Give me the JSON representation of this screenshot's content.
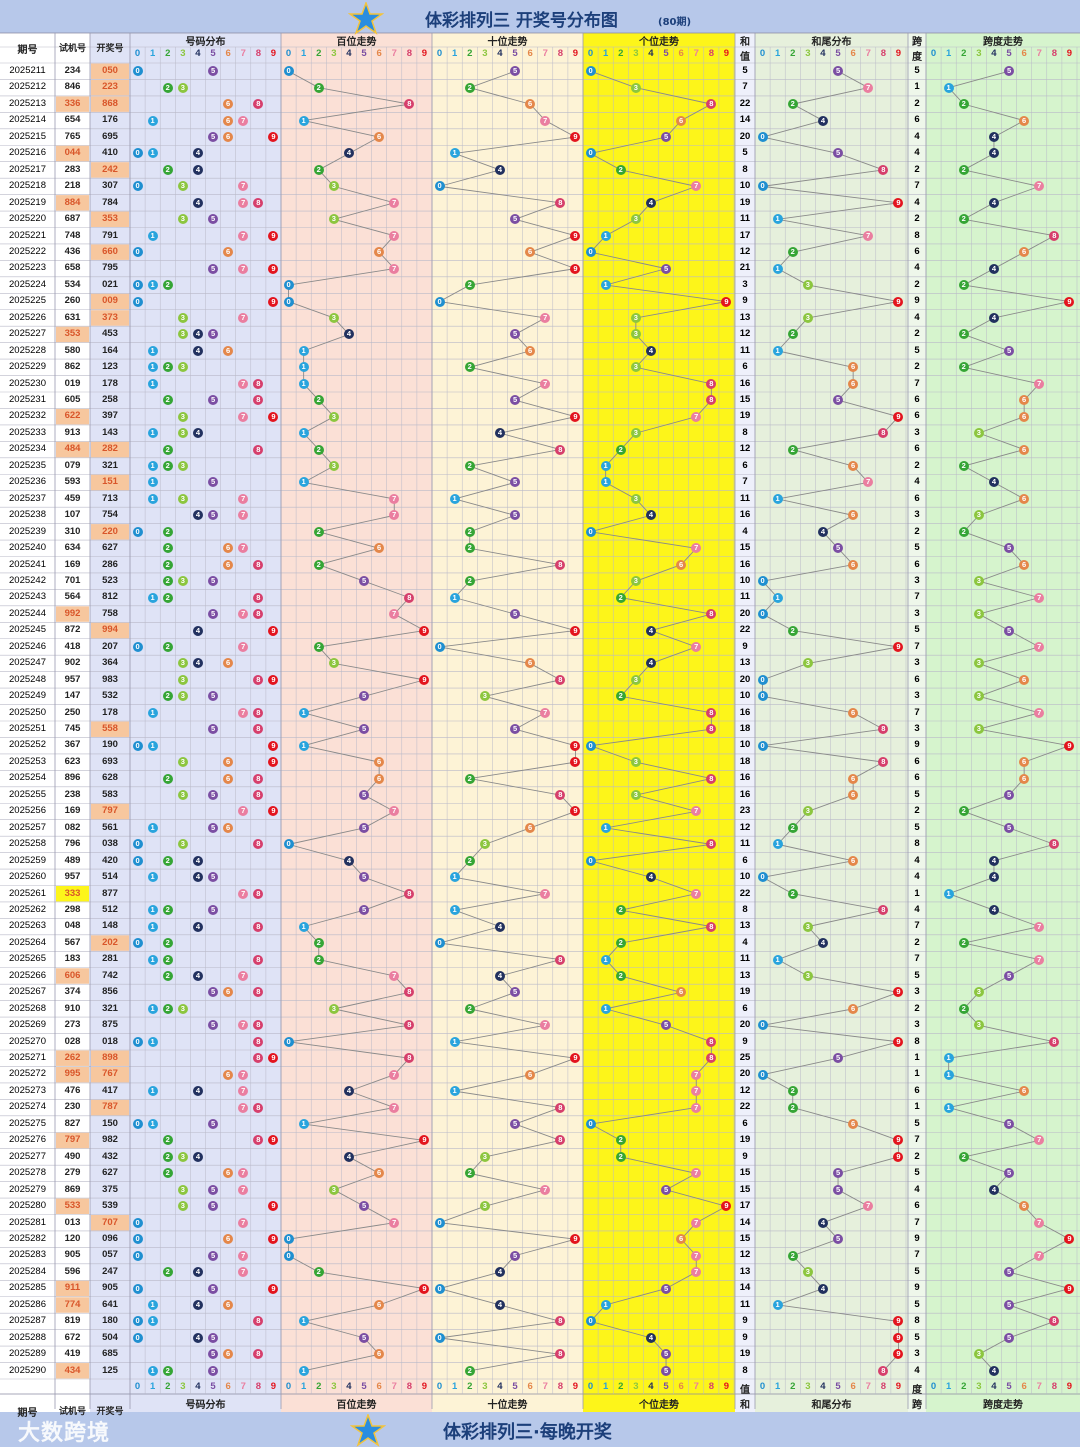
{
  "header": {
    "title": "体彩排列三 开奖号分布图",
    "period_count": "(80期)"
  },
  "footer": {
    "caption": "体彩排列三·每晚开奖",
    "brand": "大数跨境"
  },
  "columns": {
    "period": "期号",
    "trial": "试机号",
    "draw": "开奖号",
    "distribution": "号码分布",
    "hundreds": "百位走势",
    "tens": "十位走势",
    "units": "个位走势",
    "sum_top": "和",
    "sum_bottom": "值",
    "sum_tail": "和尾分布",
    "span_top": "跨",
    "span_bottom": "度",
    "span_trend": "跨度走势"
  },
  "digits": [
    "0",
    "1",
    "2",
    "3",
    "4",
    "5",
    "6",
    "7",
    "8",
    "9"
  ],
  "colors": {
    "title_bar": "#b7c8ea",
    "distribution_bg": "#dfe3f6",
    "hundreds_bg": "#fbe0d6",
    "tens_bg": "#fdf3d6",
    "units_bg": "#fdf51a",
    "sum_bg": "#eef0fb",
    "sum_tail_bg": "#e6f0dc",
    "span_col_bg": "#eef7ea",
    "span_trend_bg": "#d6f4cd",
    "trial_highlight": "#f7c79e",
    "triple_highlight": "#fdf51a",
    "digit_colors": [
      "#1f8fd0",
      "#29a4dd",
      "#35a535",
      "#8cc63f",
      "#22315f",
      "#7b4ea3",
      "#e4874a",
      "#ea7ea0",
      "#d63f6c",
      "#e3141e"
    ]
  },
  "chart_data": {
    "type": "table",
    "title": "体彩排列三 开奖号分布图",
    "rows": [
      {
        "period": "2025211",
        "trial": "234",
        "draw": "050",
        "sum": 5,
        "span": 5,
        "hl": "draw"
      },
      {
        "period": "2025212",
        "trial": "846",
        "draw": "223",
        "sum": 7,
        "span": 1,
        "hl": "draw"
      },
      {
        "period": "2025213",
        "trial": "336",
        "draw": "868",
        "sum": 22,
        "span": 2,
        "hl": "both"
      },
      {
        "period": "2025214",
        "trial": "654",
        "draw": "176",
        "sum": 14,
        "span": 6,
        "hl": ""
      },
      {
        "period": "2025215",
        "trial": "765",
        "draw": "695",
        "sum": 20,
        "span": 4,
        "hl": ""
      },
      {
        "period": "2025216",
        "trial": "044",
        "draw": "410",
        "sum": 5,
        "span": 4,
        "hl": "trial"
      },
      {
        "period": "2025217",
        "trial": "283",
        "draw": "242",
        "sum": 8,
        "span": 2,
        "hl": "draw"
      },
      {
        "period": "2025218",
        "trial": "218",
        "draw": "307",
        "sum": 10,
        "span": 7,
        "hl": ""
      },
      {
        "period": "2025219",
        "trial": "884",
        "draw": "784",
        "sum": 19,
        "span": 4,
        "hl": "trial"
      },
      {
        "period": "2025220",
        "trial": "687",
        "draw": "353",
        "sum": 11,
        "span": 2,
        "hl": "draw"
      },
      {
        "period": "2025221",
        "trial": "748",
        "draw": "791",
        "sum": 17,
        "span": 8,
        "hl": ""
      },
      {
        "period": "2025222",
        "trial": "436",
        "draw": "660",
        "sum": 12,
        "span": 6,
        "hl": "draw"
      },
      {
        "period": "2025223",
        "trial": "658",
        "draw": "795",
        "sum": 21,
        "span": 4,
        "hl": ""
      },
      {
        "period": "2025224",
        "trial": "534",
        "draw": "021",
        "sum": 3,
        "span": 2,
        "hl": ""
      },
      {
        "period": "2025225",
        "trial": "260",
        "draw": "009",
        "sum": 9,
        "span": 9,
        "hl": "draw"
      },
      {
        "period": "2025226",
        "trial": "631",
        "draw": "373",
        "sum": 13,
        "span": 4,
        "hl": "draw"
      },
      {
        "period": "2025227",
        "trial": "353",
        "draw": "453",
        "sum": 12,
        "span": 2,
        "hl": "trial"
      },
      {
        "period": "2025228",
        "trial": "580",
        "draw": "164",
        "sum": 11,
        "span": 5,
        "hl": ""
      },
      {
        "period": "2025229",
        "trial": "862",
        "draw": "123",
        "sum": 6,
        "span": 2,
        "hl": ""
      },
      {
        "period": "2025230",
        "trial": "019",
        "draw": "178",
        "sum": 16,
        "span": 7,
        "hl": ""
      },
      {
        "period": "2025231",
        "trial": "605",
        "draw": "258",
        "sum": 15,
        "span": 6,
        "hl": ""
      },
      {
        "period": "2025232",
        "trial": "622",
        "draw": "397",
        "sum": 19,
        "span": 6,
        "hl": "trial"
      },
      {
        "period": "2025233",
        "trial": "913",
        "draw": "143",
        "sum": 8,
        "span": 3,
        "hl": ""
      },
      {
        "period": "2025234",
        "trial": "484",
        "draw": "282",
        "sum": 12,
        "span": 6,
        "hl": "both"
      },
      {
        "period": "2025235",
        "trial": "079",
        "draw": "321",
        "sum": 6,
        "span": 2,
        "hl": ""
      },
      {
        "period": "2025236",
        "trial": "593",
        "draw": "151",
        "sum": 7,
        "span": 4,
        "hl": "draw"
      },
      {
        "period": "2025237",
        "trial": "459",
        "draw": "713",
        "sum": 11,
        "span": 6,
        "hl": ""
      },
      {
        "period": "2025238",
        "trial": "107",
        "draw": "754",
        "sum": 16,
        "span": 3,
        "hl": ""
      },
      {
        "period": "2025239",
        "trial": "310",
        "draw": "220",
        "sum": 4,
        "span": 2,
        "hl": "draw"
      },
      {
        "period": "2025240",
        "trial": "634",
        "draw": "627",
        "sum": 15,
        "span": 5,
        "hl": ""
      },
      {
        "period": "2025241",
        "trial": "169",
        "draw": "286",
        "sum": 16,
        "span": 6,
        "hl": ""
      },
      {
        "period": "2025242",
        "trial": "701",
        "draw": "523",
        "sum": 10,
        "span": 3,
        "hl": ""
      },
      {
        "period": "2025243",
        "trial": "564",
        "draw": "812",
        "sum": 11,
        "span": 7,
        "hl": ""
      },
      {
        "period": "2025244",
        "trial": "992",
        "draw": "758",
        "sum": 20,
        "span": 3,
        "hl": "trial"
      },
      {
        "period": "2025245",
        "trial": "872",
        "draw": "994",
        "sum": 22,
        "span": 5,
        "hl": "draw"
      },
      {
        "period": "2025246",
        "trial": "418",
        "draw": "207",
        "sum": 9,
        "span": 7,
        "hl": ""
      },
      {
        "period": "2025247",
        "trial": "902",
        "draw": "364",
        "sum": 13,
        "span": 3,
        "hl": ""
      },
      {
        "period": "2025248",
        "trial": "957",
        "draw": "983",
        "sum": 20,
        "span": 6,
        "hl": ""
      },
      {
        "period": "2025249",
        "trial": "147",
        "draw": "532",
        "sum": 10,
        "span": 3,
        "hl": ""
      },
      {
        "period": "2025250",
        "trial": "250",
        "draw": "178",
        "sum": 16,
        "span": 7,
        "hl": ""
      },
      {
        "period": "2025251",
        "trial": "745",
        "draw": "558",
        "sum": 18,
        "span": 3,
        "hl": "draw"
      },
      {
        "period": "2025252",
        "trial": "367",
        "draw": "190",
        "sum": 10,
        "span": 9,
        "hl": ""
      },
      {
        "period": "2025253",
        "trial": "623",
        "draw": "693",
        "sum": 18,
        "span": 6,
        "hl": ""
      },
      {
        "period": "2025254",
        "trial": "896",
        "draw": "628",
        "sum": 16,
        "span": 6,
        "hl": ""
      },
      {
        "period": "2025255",
        "trial": "238",
        "draw": "583",
        "sum": 16,
        "span": 5,
        "hl": ""
      },
      {
        "period": "2025256",
        "trial": "169",
        "draw": "797",
        "sum": 23,
        "span": 2,
        "hl": "draw"
      },
      {
        "period": "2025257",
        "trial": "082",
        "draw": "561",
        "sum": 12,
        "span": 5,
        "hl": ""
      },
      {
        "period": "2025258",
        "trial": "796",
        "draw": "038",
        "sum": 11,
        "span": 8,
        "hl": ""
      },
      {
        "period": "2025259",
        "trial": "489",
        "draw": "420",
        "sum": 6,
        "span": 4,
        "hl": ""
      },
      {
        "period": "2025260",
        "trial": "957",
        "draw": "514",
        "sum": 10,
        "span": 4,
        "hl": ""
      },
      {
        "period": "2025261",
        "trial": "333",
        "draw": "877",
        "sum": 22,
        "span": 1,
        "hl": "triple"
      },
      {
        "period": "2025262",
        "trial": "298",
        "draw": "512",
        "sum": 8,
        "span": 4,
        "hl": ""
      },
      {
        "period": "2025263",
        "trial": "048",
        "draw": "148",
        "sum": 13,
        "span": 7,
        "hl": ""
      },
      {
        "period": "2025264",
        "trial": "567",
        "draw": "202",
        "sum": 4,
        "span": 2,
        "hl": "draw"
      },
      {
        "period": "2025265",
        "trial": "183",
        "draw": "281",
        "sum": 11,
        "span": 7,
        "hl": ""
      },
      {
        "period": "2025266",
        "trial": "606",
        "draw": "742",
        "sum": 13,
        "span": 5,
        "hl": "trial"
      },
      {
        "period": "2025267",
        "trial": "374",
        "draw": "856",
        "sum": 19,
        "span": 3,
        "hl": ""
      },
      {
        "period": "2025268",
        "trial": "910",
        "draw": "321",
        "sum": 6,
        "span": 2,
        "hl": ""
      },
      {
        "period": "2025269",
        "trial": "273",
        "draw": "875",
        "sum": 20,
        "span": 3,
        "hl": ""
      },
      {
        "period": "2025270",
        "trial": "028",
        "draw": "018",
        "sum": 9,
        "span": 8,
        "hl": ""
      },
      {
        "period": "2025271",
        "trial": "262",
        "draw": "898",
        "sum": 25,
        "span": 1,
        "hl": "both"
      },
      {
        "period": "2025272",
        "trial": "995",
        "draw": "767",
        "sum": 20,
        "span": 1,
        "hl": "both"
      },
      {
        "period": "2025273",
        "trial": "476",
        "draw": "417",
        "sum": 12,
        "span": 6,
        "hl": ""
      },
      {
        "period": "2025274",
        "trial": "230",
        "draw": "787",
        "sum": 22,
        "span": 1,
        "hl": "draw"
      },
      {
        "period": "2025275",
        "trial": "827",
        "draw": "150",
        "sum": 6,
        "span": 5,
        "hl": ""
      },
      {
        "period": "2025276",
        "trial": "797",
        "draw": "982",
        "sum": 19,
        "span": 7,
        "hl": "trial"
      },
      {
        "period": "2025277",
        "trial": "490",
        "draw": "432",
        "sum": 9,
        "span": 2,
        "hl": ""
      },
      {
        "period": "2025278",
        "trial": "279",
        "draw": "627",
        "sum": 15,
        "span": 5,
        "hl": ""
      },
      {
        "period": "2025279",
        "trial": "869",
        "draw": "375",
        "sum": 15,
        "span": 4,
        "hl": ""
      },
      {
        "period": "2025280",
        "trial": "533",
        "draw": "539",
        "sum": 17,
        "span": 6,
        "hl": "trial"
      },
      {
        "period": "2025281",
        "trial": "013",
        "draw": "707",
        "sum": 14,
        "span": 7,
        "hl": "draw"
      },
      {
        "period": "2025282",
        "trial": "120",
        "draw": "096",
        "sum": 15,
        "span": 9,
        "hl": ""
      },
      {
        "period": "2025283",
        "trial": "905",
        "draw": "057",
        "sum": 12,
        "span": 7,
        "hl": ""
      },
      {
        "period": "2025284",
        "trial": "596",
        "draw": "247",
        "sum": 13,
        "span": 5,
        "hl": ""
      },
      {
        "period": "2025285",
        "trial": "911",
        "draw": "905",
        "sum": 14,
        "span": 9,
        "hl": "trial"
      },
      {
        "period": "2025286",
        "trial": "774",
        "draw": "641",
        "sum": 11,
        "span": 5,
        "hl": "trial"
      },
      {
        "period": "2025287",
        "trial": "819",
        "draw": "180",
        "sum": 9,
        "span": 8,
        "hl": ""
      },
      {
        "period": "2025288",
        "trial": "672",
        "draw": "504",
        "sum": 9,
        "span": 5,
        "hl": ""
      },
      {
        "period": "2025289",
        "trial": "419",
        "draw": "685",
        "sum": 19,
        "span": 3,
        "hl": ""
      },
      {
        "period": "2025290",
        "trial": "434",
        "draw": "125",
        "sum": 8,
        "span": 4,
        "hl": "trial"
      }
    ]
  }
}
